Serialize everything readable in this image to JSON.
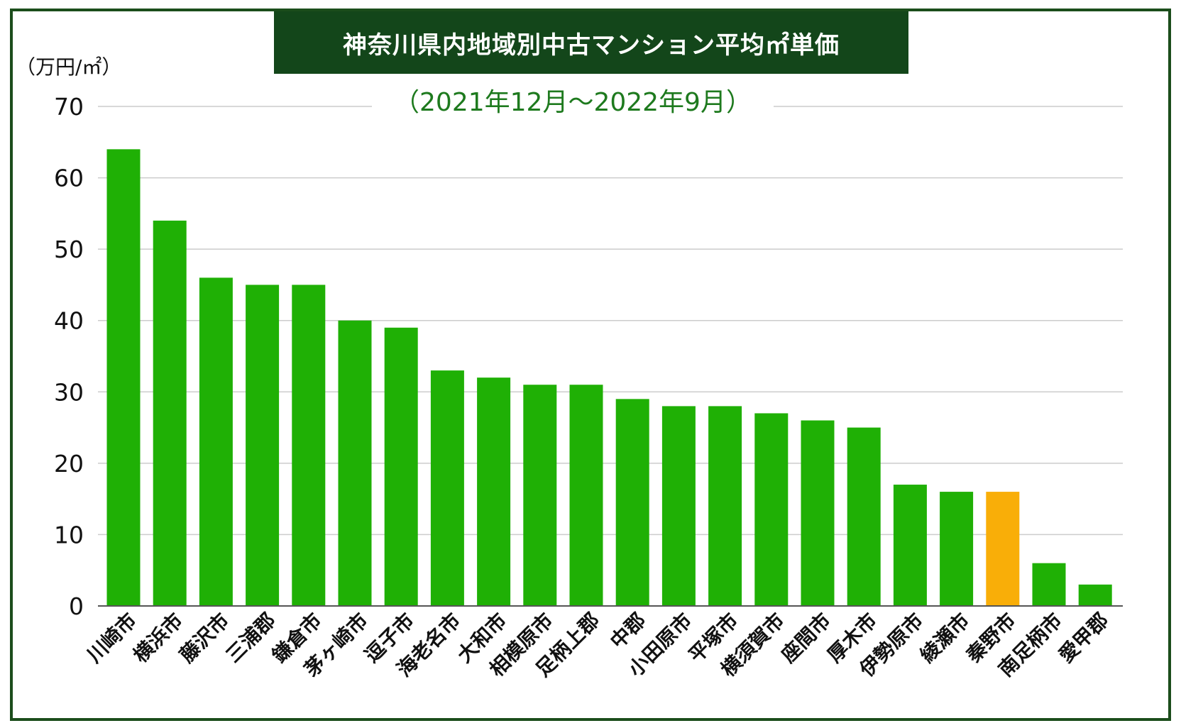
{
  "chart_data": {
    "type": "bar",
    "title": "神奈川県内地域別中古マンション平均㎡単価",
    "subtitle": "（2021年12月〜2022年9月）",
    "ylabel": "（万円/㎡）",
    "xlabel": "",
    "ylim": [
      0,
      70
    ],
    "yticks": [
      0,
      10,
      20,
      30,
      40,
      50,
      60,
      70
    ],
    "grid": true,
    "legend": "none",
    "categories": [
      "川崎市",
      "横浜市",
      "藤沢市",
      "三浦郡",
      "鎌倉市",
      "茅ヶ崎市",
      "逗子市",
      "海老名市",
      "大和市",
      "相模原市",
      "足柄上郡",
      "中郡",
      "小田原市",
      "平塚市",
      "横須賀市",
      "座間市",
      "厚木市",
      "伊勢原市",
      "綾瀬市",
      "秦野市",
      "南足柄市",
      "愛甲郡"
    ],
    "values": [
      64,
      54,
      46,
      45,
      45,
      40,
      39,
      33,
      32,
      31,
      31,
      29,
      28,
      28,
      27,
      26,
      25,
      17,
      16,
      16,
      6,
      3
    ],
    "highlight_index": 19,
    "colors": {
      "bar": "#1fb005",
      "highlight": "#f9ae08",
      "title_bg": "#13461a",
      "frame": "#1b4d1b",
      "subtitle": "#1e7a1e",
      "grid": "#cccccc"
    }
  }
}
